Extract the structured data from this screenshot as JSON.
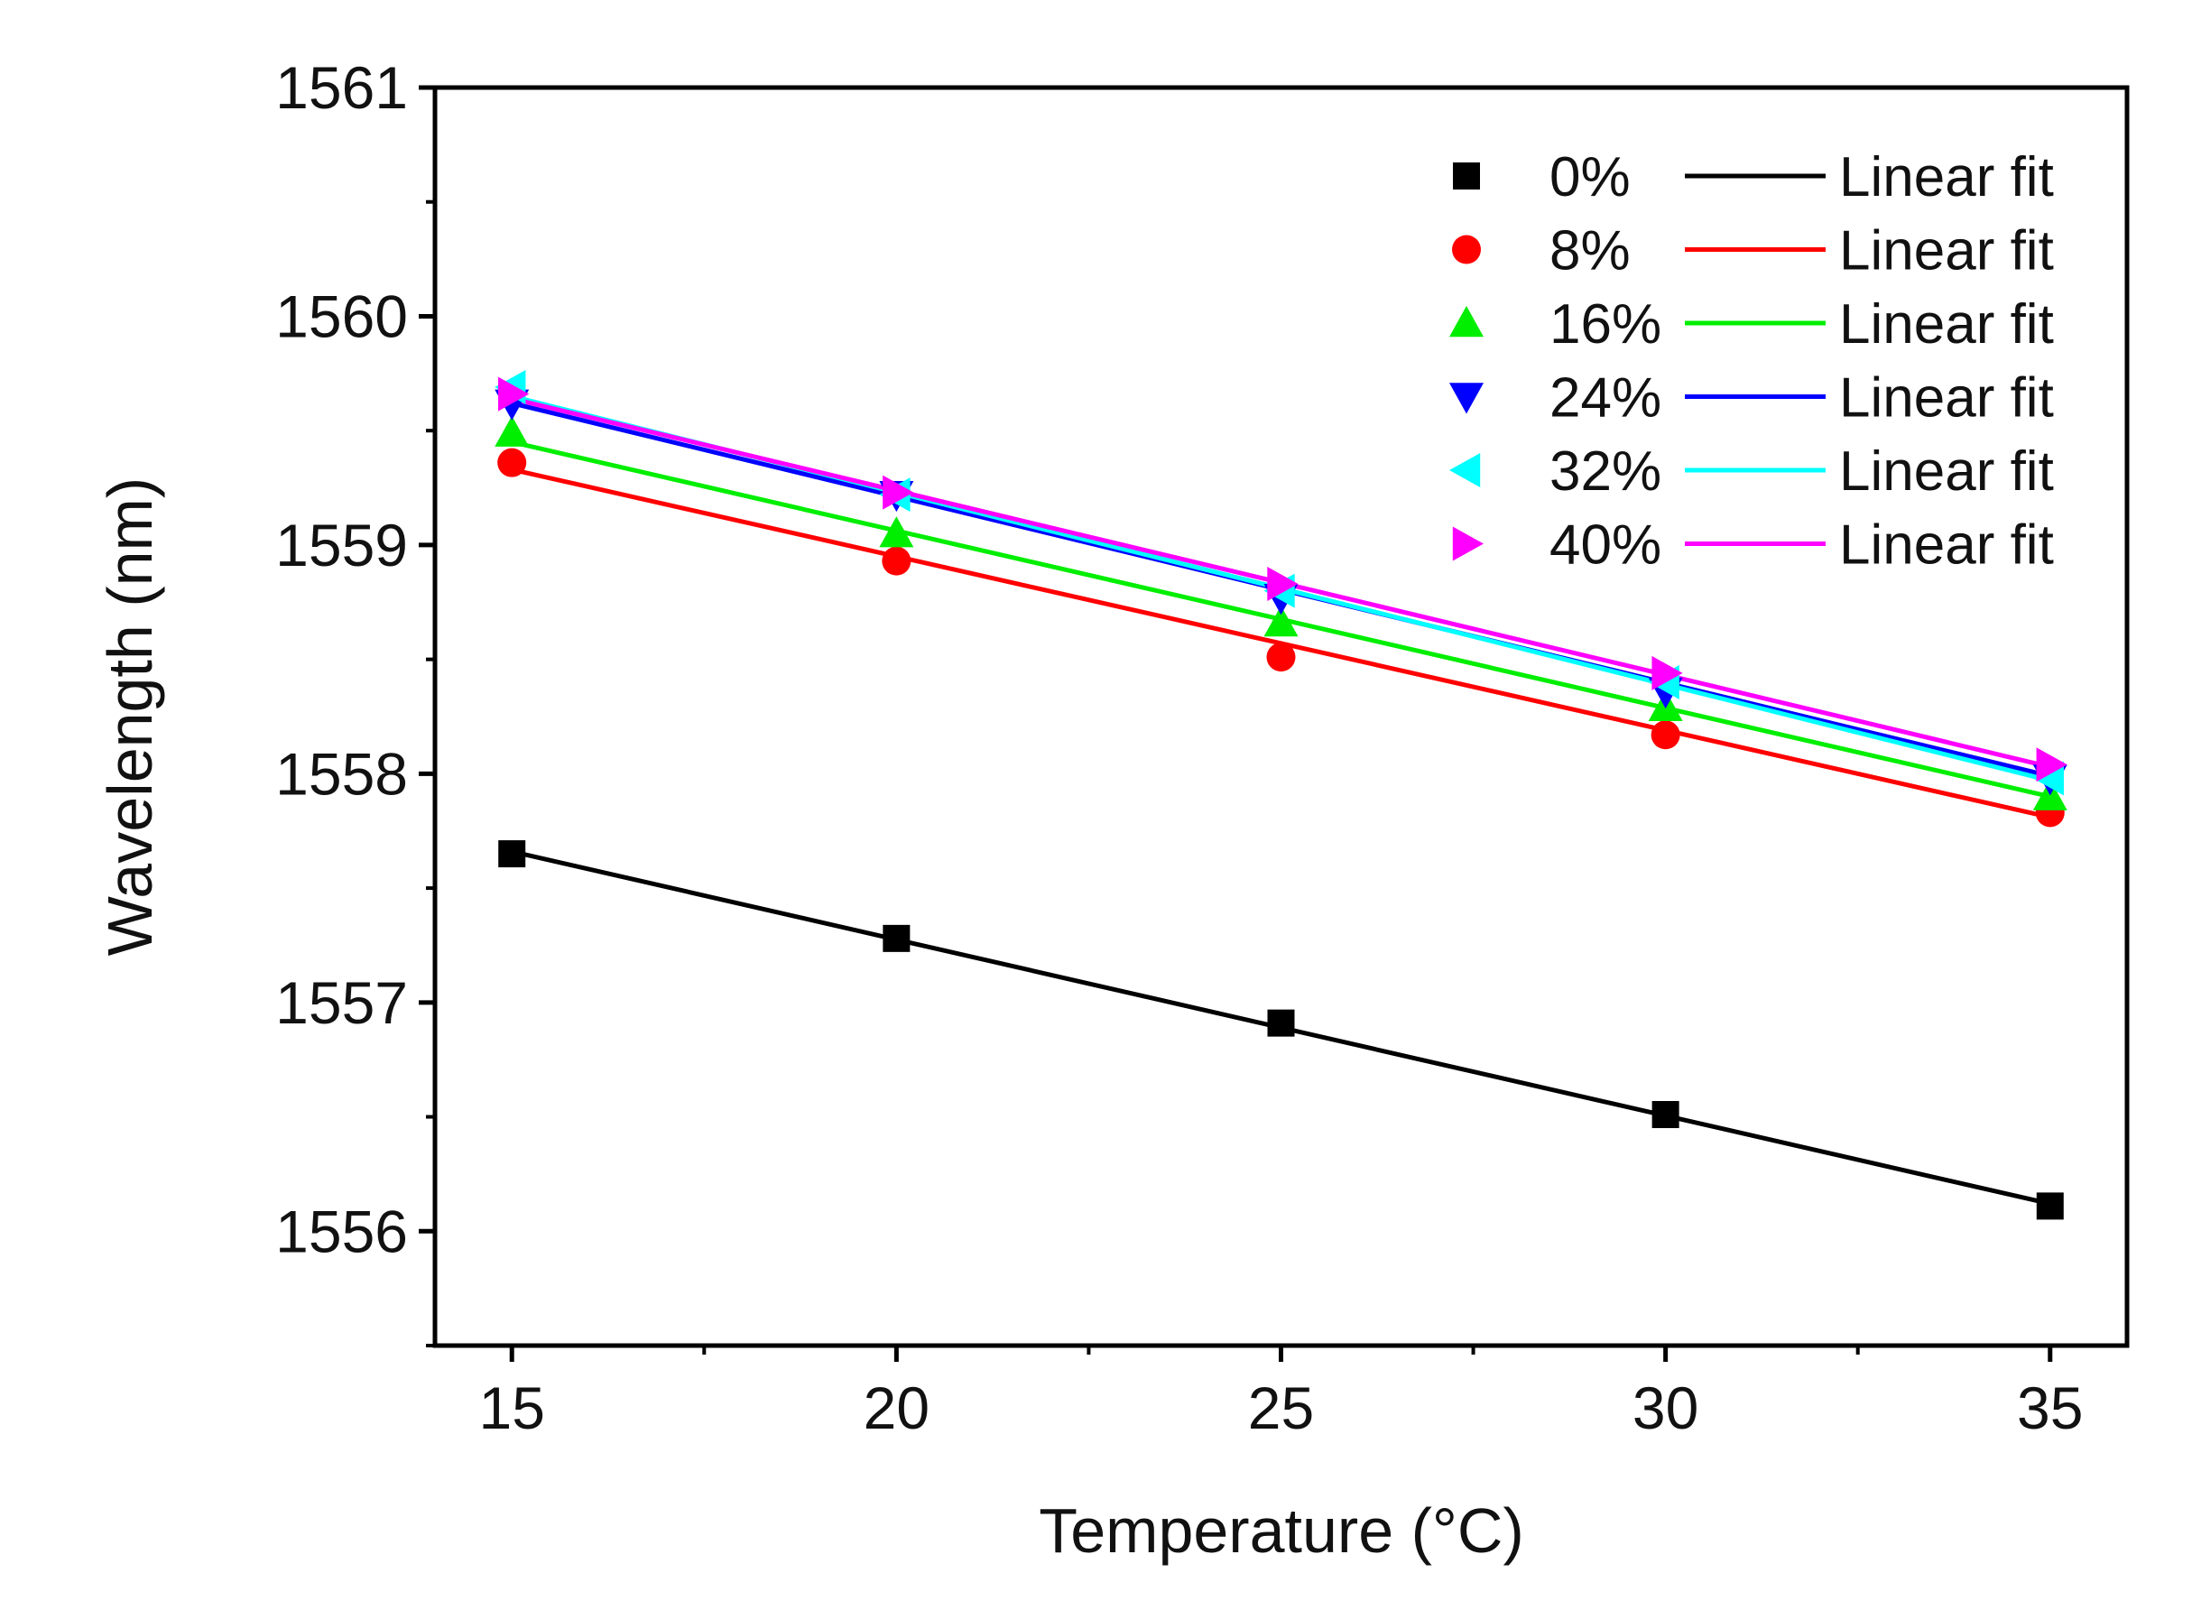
{
  "chart_data": {
    "type": "scatter",
    "xlabel": "Temperature (°C)",
    "ylabel": "Wavelength (nm)",
    "xlim": [
      14,
      36
    ],
    "ylim": [
      1555.5,
      1561
    ],
    "x_ticks": [
      15,
      20,
      25,
      30,
      35
    ],
    "y_ticks": [
      1556,
      1557,
      1558,
      1559,
      1560,
      1561
    ],
    "grid": false,
    "legend_position": "top-right",
    "x": [
      15,
      20,
      25,
      30,
      35
    ],
    "fit_label": "Linear fit",
    "series": [
      {
        "name": "0%",
        "marker": "square",
        "color": "#000000",
        "values": [
          1557.65,
          1557.28,
          1556.91,
          1556.51,
          1556.11
        ],
        "fit": [
          1557.66,
          1556.12
        ]
      },
      {
        "name": "8%",
        "marker": "circle",
        "color": "#ff0000",
        "values": [
          1559.36,
          1558.93,
          1558.51,
          1558.17,
          1557.83
        ],
        "fit": [
          1559.33,
          1557.81
        ]
      },
      {
        "name": "16%",
        "marker": "triangle-up",
        "color": "#00ee00",
        "values": [
          1559.49,
          1559.05,
          1558.66,
          1558.29,
          1557.9
        ],
        "fit": [
          1559.45,
          1557.9
        ]
      },
      {
        "name": "24%",
        "marker": "triangle-down",
        "color": "#0000ff",
        "values": [
          1559.62,
          1559.22,
          1558.77,
          1558.36,
          1557.98
        ],
        "fit": [
          1559.62,
          1557.99
        ]
      },
      {
        "name": "32%",
        "marker": "triangle-left",
        "color": "#00ffff",
        "values": [
          1559.69,
          1559.22,
          1558.8,
          1558.4,
          1557.98
        ],
        "fit": [
          1559.65,
          1557.97
        ]
      },
      {
        "name": "40%",
        "marker": "triangle-right",
        "color": "#ff00ff",
        "values": [
          1559.66,
          1559.23,
          1558.83,
          1558.44,
          1558.04
        ],
        "fit": [
          1559.64,
          1558.03
        ]
      }
    ]
  }
}
